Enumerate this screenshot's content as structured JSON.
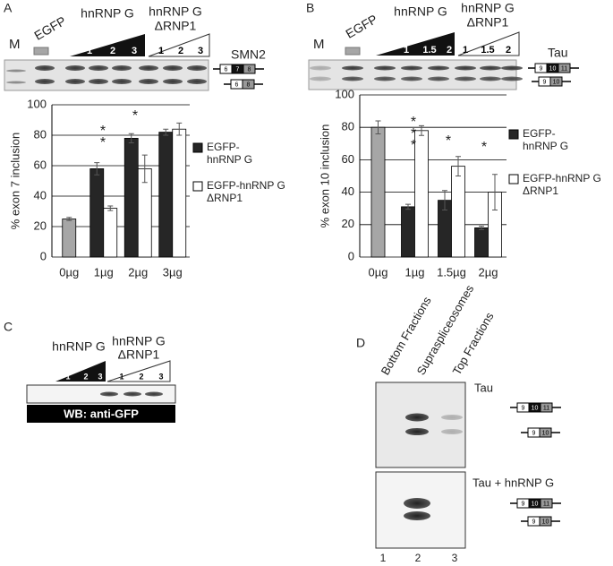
{
  "panels": {
    "a": {
      "label": "A",
      "marker": "M",
      "control": "EGFP",
      "wt": "hnRNP G",
      "mut": [
        "hnRNP G",
        "ΔRNP1"
      ],
      "lanes": [
        "1",
        "2",
        "3",
        "1",
        "2",
        "3"
      ],
      "gene": "SMN2",
      "exons_top": [
        "6",
        "7",
        "8"
      ],
      "exons_bottom": [
        "6",
        "8"
      ]
    },
    "b": {
      "label": "B",
      "marker": "M",
      "control": "EGFP",
      "wt": "hnRNP G",
      "mut": [
        "hnRNP G",
        "ΔRNP1"
      ],
      "lanes": [
        "1",
        "1.5",
        "2",
        "1",
        "1.5",
        "2"
      ],
      "gene": "Tau",
      "exons_top": [
        "9",
        "10",
        "11"
      ],
      "exons_bottom": [
        "9",
        "10"
      ]
    },
    "c": {
      "label": "C",
      "wt": "hnRNP G",
      "mut": [
        "hnRNP G",
        "ΔRNP1"
      ],
      "lanes": [
        "1",
        "2",
        "3",
        "1",
        "2",
        "3"
      ],
      "blot": "WB: anti-GFP"
    },
    "d": {
      "label": "D",
      "fractions": [
        "Bottom Fractions",
        "Supraspliceosomes",
        "Top Fractions"
      ],
      "top_gel": "Tau",
      "bottom_gel": "Tau + hnRNP G",
      "lanes": [
        "1",
        "2",
        "3"
      ],
      "exons_top": [
        "9",
        "10",
        "11"
      ],
      "exons_bottom": [
        "9",
        "10"
      ]
    }
  },
  "chart_data": [
    {
      "type": "bar",
      "ylabel": "% exon 7 inclusion",
      "categories": [
        "0µg",
        "1µg",
        "2µg",
        "3µg"
      ],
      "ylim": [
        0,
        100
      ],
      "yticks": [
        0,
        20,
        40,
        60,
        80,
        100
      ],
      "grid": true,
      "series": [
        {
          "color": "#a6a6a6",
          "values": [
            25,
            null,
            null,
            null
          ],
          "errors": [
            1,
            null,
            null,
            null
          ]
        },
        {
          "name": "EGFP-hnRNP G",
          "color": "#262626",
          "values": [
            null,
            58,
            78,
            82
          ],
          "errors": [
            null,
            4,
            3,
            2
          ]
        },
        {
          "name": "EGFP-hnRNP G ΔRNP1",
          "color": "#ffffff",
          "values": [
            null,
            32,
            58,
            84
          ],
          "errors": [
            null,
            1.5,
            9,
            4
          ]
        }
      ],
      "annotations": [
        "*",
        "*",
        "*"
      ]
    },
    {
      "type": "bar",
      "ylabel": "% exon 10 inclusion",
      "categories": [
        "0µg",
        "1µg",
        "1.5µg",
        "2µg"
      ],
      "ylim": [
        0,
        100
      ],
      "yticks": [
        0,
        20,
        40,
        60,
        80,
        100
      ],
      "grid": true,
      "series": [
        {
          "color": "#a6a6a6",
          "values": [
            80,
            null,
            null,
            null
          ],
          "errors": [
            4,
            null,
            null,
            null
          ]
        },
        {
          "name": "EGFP-hnRNP G",
          "color": "#262626",
          "values": [
            null,
            31,
            35,
            18
          ],
          "errors": [
            null,
            1.5,
            6,
            1
          ]
        },
        {
          "name": "EGFP-hnRNP G ΔRNP1",
          "color": "#ffffff",
          "values": [
            null,
            78,
            56,
            40
          ],
          "errors": [
            null,
            3,
            6,
            11
          ]
        }
      ],
      "annotations": [
        "*",
        "*",
        "*",
        "*",
        "*"
      ]
    }
  ]
}
